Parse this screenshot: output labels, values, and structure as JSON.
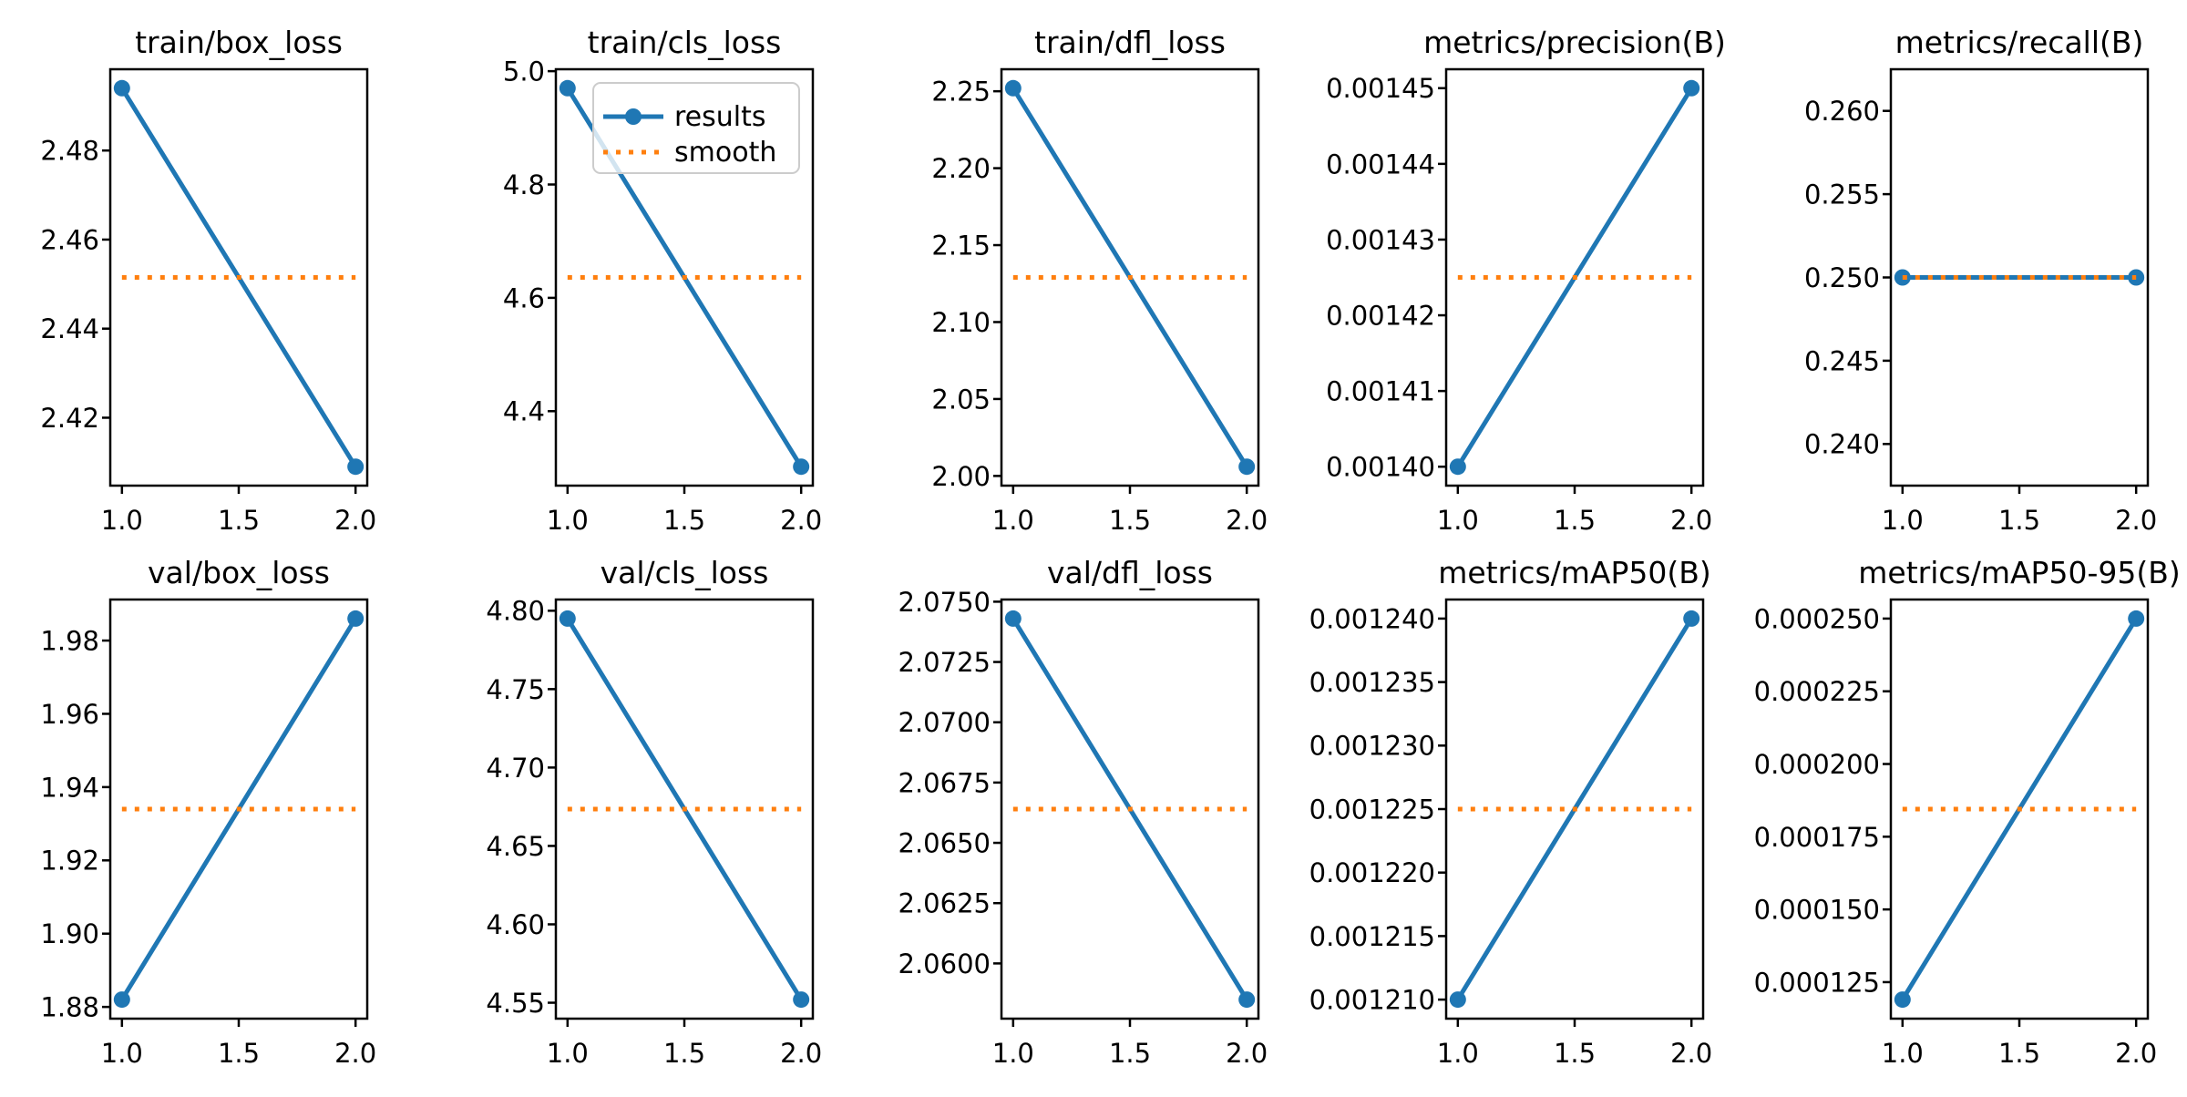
{
  "figure": {
    "background": "#ffffff",
    "colors": {
      "results": "#1f77b4",
      "smooth": "#ff7f0e",
      "spine": "#000000",
      "legend_edge": "#cccccc"
    },
    "legend": {
      "entries": [
        {
          "label": "results"
        },
        {
          "label": "smooth"
        }
      ]
    },
    "xlim": [
      0.95,
      2.05
    ],
    "xticks": [
      1.0,
      1.5,
      2.0
    ],
    "xtick_labels": [
      "1.0",
      "1.5",
      "2.0"
    ]
  },
  "chart_data": [
    {
      "type": "line",
      "title": "train/box_loss",
      "x": [
        1,
        2
      ],
      "series": [
        {
          "name": "results",
          "values": [
            2.494,
            2.409
          ]
        },
        {
          "name": "smooth",
          "values": [
            2.4515,
            2.4515
          ]
        }
      ],
      "ylim": [
        2.40475,
        2.49825
      ],
      "yticks": [
        2.42,
        2.44,
        2.46,
        2.48
      ],
      "ytick_labels": [
        "2.42",
        "2.44",
        "2.46",
        "2.48"
      ],
      "legend": false,
      "grid": false
    },
    {
      "type": "line",
      "title": "train/cls_loss",
      "x": [
        1,
        2
      ],
      "series": [
        {
          "name": "results",
          "values": [
            4.97,
            4.302
          ]
        },
        {
          "name": "smooth",
          "values": [
            4.636,
            4.636
          ]
        }
      ],
      "ylim": [
        4.2686,
        5.0034
      ],
      "yticks": [
        4.4,
        4.6,
        4.8,
        5.0
      ],
      "ytick_labels": [
        "4.4",
        "4.6",
        "4.8",
        "5.0"
      ],
      "legend": true,
      "grid": false
    },
    {
      "type": "line",
      "title": "train/dfl_loss",
      "x": [
        1,
        2
      ],
      "series": [
        {
          "name": "results",
          "values": [
            2.252,
            2.006
          ]
        },
        {
          "name": "smooth",
          "values": [
            2.129,
            2.129
          ]
        }
      ],
      "ylim": [
        1.9937,
        2.2643
      ],
      "yticks": [
        2.0,
        2.05,
        2.1,
        2.15,
        2.2,
        2.25
      ],
      "ytick_labels": [
        "2.00",
        "2.05",
        "2.10",
        "2.15",
        "2.20",
        "2.25"
      ],
      "legend": false,
      "grid": false
    },
    {
      "type": "line",
      "title": "metrics/precision(B)",
      "x": [
        1,
        2
      ],
      "series": [
        {
          "name": "results",
          "values": [
            0.0014,
            0.00145
          ]
        },
        {
          "name": "smooth",
          "values": [
            0.001425,
            0.001425
          ]
        }
      ],
      "ylim": [
        0.0013975,
        0.0014525
      ],
      "yticks": [
        0.0014,
        0.00141,
        0.00142,
        0.00143,
        0.00144,
        0.00145
      ],
      "ytick_labels": [
        "0.00140",
        "0.00141",
        "0.00142",
        "0.00143",
        "0.00144",
        "0.00145"
      ],
      "legend": false,
      "grid": false
    },
    {
      "type": "line",
      "title": "metrics/recall(B)",
      "x": [
        1,
        2
      ],
      "series": [
        {
          "name": "results",
          "values": [
            0.25,
            0.25
          ]
        },
        {
          "name": "smooth",
          "values": [
            0.25,
            0.25
          ]
        }
      ],
      "ylim": [
        0.2375,
        0.2625
      ],
      "yticks": [
        0.24,
        0.245,
        0.25,
        0.255,
        0.26
      ],
      "ytick_labels": [
        "0.240",
        "0.245",
        "0.250",
        "0.255",
        "0.260"
      ],
      "legend": false,
      "grid": false
    },
    {
      "type": "line",
      "title": "val/box_loss",
      "x": [
        1,
        2
      ],
      "series": [
        {
          "name": "results",
          "values": [
            1.882,
            1.986
          ]
        },
        {
          "name": "smooth",
          "values": [
            1.934,
            1.934
          ]
        }
      ],
      "ylim": [
        1.8768,
        1.9912
      ],
      "yticks": [
        1.88,
        1.9,
        1.92,
        1.94,
        1.96,
        1.98
      ],
      "ytick_labels": [
        "1.88",
        "1.90",
        "1.92",
        "1.94",
        "1.96",
        "1.98"
      ],
      "legend": false,
      "grid": false
    },
    {
      "type": "line",
      "title": "val/cls_loss",
      "x": [
        1,
        2
      ],
      "series": [
        {
          "name": "results",
          "values": [
            4.795,
            4.552
          ]
        },
        {
          "name": "smooth",
          "values": [
            4.6735,
            4.6735
          ]
        }
      ],
      "ylim": [
        4.53985,
        4.80715
      ],
      "yticks": [
        4.55,
        4.6,
        4.65,
        4.7,
        4.75,
        4.8
      ],
      "ytick_labels": [
        "4.55",
        "4.60",
        "4.65",
        "4.70",
        "4.75",
        "4.80"
      ],
      "legend": false,
      "grid": false
    },
    {
      "type": "line",
      "title": "val/dfl_loss",
      "x": [
        1,
        2
      ],
      "series": [
        {
          "name": "results",
          "values": [
            2.0743,
            2.0585
          ]
        },
        {
          "name": "smooth",
          "values": [
            2.0664,
            2.0664
          ]
        }
      ],
      "ylim": [
        2.05771,
        2.07509
      ],
      "yticks": [
        2.06,
        2.0625,
        2.065,
        2.0675,
        2.07,
        2.0725,
        2.075
      ],
      "ytick_labels": [
        "2.0600",
        "2.0625",
        "2.0650",
        "2.0675",
        "2.0700",
        "2.0725",
        "2.0750"
      ],
      "legend": false,
      "grid": false
    },
    {
      "type": "line",
      "title": "metrics/mAP50(B)",
      "x": [
        1,
        2
      ],
      "series": [
        {
          "name": "results",
          "values": [
            0.00121,
            0.00124
          ]
        },
        {
          "name": "smooth",
          "values": [
            0.001225,
            0.001225
          ]
        }
      ],
      "ylim": [
        0.0012085,
        0.0012415
      ],
      "yticks": [
        0.00121,
        0.001215,
        0.00122,
        0.001225,
        0.00123,
        0.001235,
        0.00124
      ],
      "ytick_labels": [
        "0.001210",
        "0.001215",
        "0.001220",
        "0.001225",
        "0.001230",
        "0.001235",
        "0.001240"
      ],
      "legend": false,
      "grid": false
    },
    {
      "type": "line",
      "title": "metrics/mAP50-95(B)",
      "x": [
        1,
        2
      ],
      "series": [
        {
          "name": "results",
          "values": [
            0.000119,
            0.00025
          ]
        },
        {
          "name": "smooth",
          "values": [
            0.0001845,
            0.0001845
          ]
        }
      ],
      "ylim": [
        0.00011245,
        0.00025655
      ],
      "yticks": [
        0.000125,
        0.00015,
        0.000175,
        0.0002,
        0.000225,
        0.00025
      ],
      "ytick_labels": [
        "0.000125",
        "0.000150",
        "0.000175",
        "0.000200",
        "0.000225",
        "0.000250"
      ],
      "legend": false,
      "grid": false
    }
  ]
}
